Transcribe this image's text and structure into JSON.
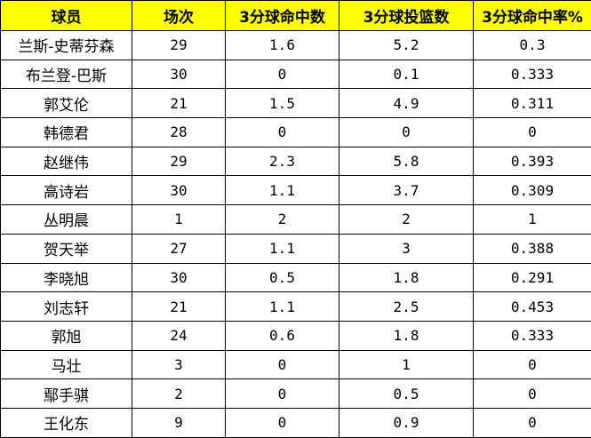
{
  "header": {
    "colors": {
      "header_bg": "#ffff00",
      "border": "#000000"
    },
    "columns": [
      "球员",
      "场次",
      "3分球命中数",
      "3分球投篮数",
      "3分球命中率%"
    ]
  },
  "rows": [
    {
      "player": "兰斯-史蒂芬森",
      "games": "29",
      "made": "1.6",
      "attempts": "5.2",
      "pct": "0.3"
    },
    {
      "player": "布兰登-巴斯",
      "games": "30",
      "made": "0",
      "attempts": "0.1",
      "pct": "0.333"
    },
    {
      "player": "郭艾伦",
      "games": "21",
      "made": "1.5",
      "attempts": "4.9",
      "pct": "0.311"
    },
    {
      "player": "韩德君",
      "games": "28",
      "made": "0",
      "attempts": "0",
      "pct": "0"
    },
    {
      "player": "赵继伟",
      "games": "29",
      "made": "2.3",
      "attempts": "5.8",
      "pct": "0.393"
    },
    {
      "player": "高诗岩",
      "games": "30",
      "made": "1.1",
      "attempts": "3.7",
      "pct": "0.309"
    },
    {
      "player": "丛明晨",
      "games": "1",
      "made": "2",
      "attempts": "2",
      "pct": "1"
    },
    {
      "player": "贺天举",
      "games": "27",
      "made": "1.1",
      "attempts": "3",
      "pct": "0.388"
    },
    {
      "player": "李晓旭",
      "games": "30",
      "made": "0.5",
      "attempts": "1.8",
      "pct": "0.291"
    },
    {
      "player": "刘志轩",
      "games": "21",
      "made": "1.1",
      "attempts": "2.5",
      "pct": "0.453"
    },
    {
      "player": "郭旭",
      "games": "24",
      "made": "0.6",
      "attempts": "1.8",
      "pct": "0.333"
    },
    {
      "player": "马壮",
      "games": "3",
      "made": "0",
      "attempts": "1",
      "pct": "0"
    },
    {
      "player": "鄢手骐",
      "games": "2",
      "made": "0",
      "attempts": "0.5",
      "pct": "0"
    },
    {
      "player": "王化东",
      "games": "9",
      "made": "0",
      "attempts": "0.9",
      "pct": "0"
    }
  ]
}
